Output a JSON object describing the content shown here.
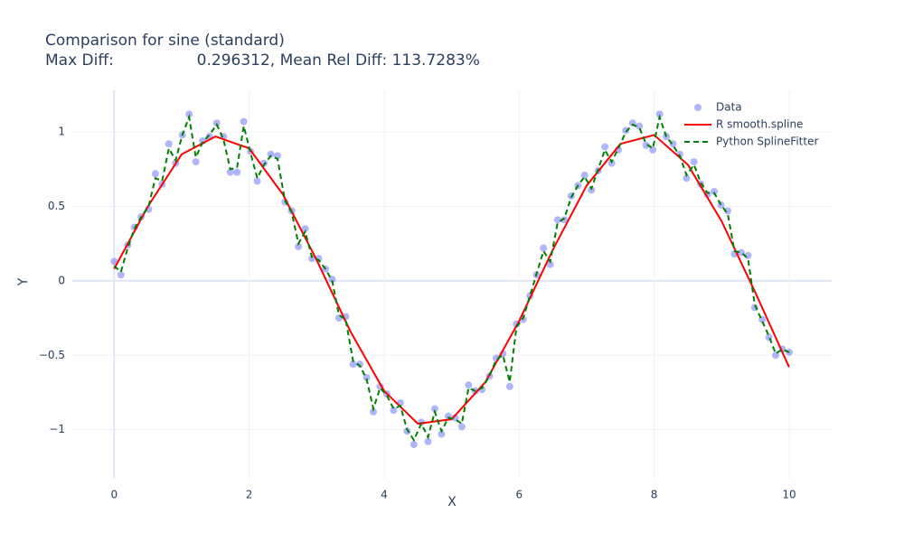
{
  "chart_data": {
    "type": "line",
    "title": "Comparison for sine (standard)",
    "subtitle": "Max Diff:                 0.296312, Mean Rel Diff: 113.7283%",
    "xlabel": "X",
    "ylabel": "Y",
    "xlim": [
      -0.62,
      10.63
    ],
    "ylim": [
      -1.33,
      1.28
    ],
    "xticks": [
      0,
      2,
      4,
      6,
      8,
      10
    ],
    "yticks": [
      {
        "value": -1,
        "label": "−1"
      },
      {
        "value": -0.5,
        "label": "−0.5"
      },
      0,
      0.5,
      1
    ],
    "grid": true,
    "legend": "top-right",
    "series": [
      {
        "name": "Data",
        "mode": "markers",
        "color": "#636efa",
        "x": [
          0,
          0.1,
          0.2,
          0.3,
          0.4,
          0.51,
          0.61,
          0.71,
          0.81,
          0.91,
          1.01,
          1.11,
          1.21,
          1.31,
          1.41,
          1.52,
          1.62,
          1.72,
          1.82,
          1.92,
          2.02,
          2.12,
          2.22,
          2.32,
          2.42,
          2.53,
          2.63,
          2.73,
          2.83,
          2.93,
          3.03,
          3.13,
          3.23,
          3.33,
          3.43,
          3.54,
          3.64,
          3.74,
          3.84,
          3.94,
          4.04,
          4.14,
          4.24,
          4.34,
          4.44,
          4.55,
          4.65,
          4.75,
          4.85,
          4.95,
          5.05,
          5.15,
          5.25,
          5.35,
          5.45,
          5.56,
          5.66,
          5.76,
          5.86,
          5.96,
          6.06,
          6.16,
          6.26,
          6.36,
          6.46,
          6.57,
          6.67,
          6.77,
          6.87,
          6.97,
          7.07,
          7.17,
          7.27,
          7.37,
          7.47,
          7.58,
          7.68,
          7.78,
          7.88,
          7.98,
          8.08,
          8.18,
          8.28,
          8.38,
          8.48,
          8.59,
          8.69,
          8.79,
          8.89,
          8.99,
          9.09,
          9.19,
          9.29,
          9.39,
          9.49,
          9.6,
          9.7,
          9.8,
          9.9,
          10
        ],
        "values": [
          0.13,
          0.04,
          0.24,
          0.36,
          0.43,
          0.48,
          0.72,
          0.65,
          0.92,
          0.79,
          0.98,
          1.12,
          0.8,
          0.94,
          0.97,
          1.06,
          0.97,
          0.73,
          0.73,
          1.07,
          0.87,
          0.67,
          0.79,
          0.85,
          0.84,
          0.53,
          0.47,
          0.23,
          0.35,
          0.15,
          0.15,
          0.08,
          0.01,
          -0.25,
          -0.24,
          -0.56,
          -0.56,
          -0.65,
          -0.88,
          -0.71,
          -0.76,
          -0.87,
          -0.82,
          -1.01,
          -1.1,
          -0.95,
          -1.08,
          -0.86,
          -1.03,
          -0.91,
          -0.92,
          -0.98,
          -0.7,
          -0.74,
          -0.73,
          -0.64,
          -0.52,
          -0.49,
          -0.71,
          -0.29,
          -0.26,
          -0.1,
          0.04,
          0.22,
          0.11,
          0.41,
          0.41,
          0.57,
          0.64,
          0.71,
          0.61,
          0.74,
          0.9,
          0.79,
          0.88,
          1.01,
          1.06,
          1.04,
          0.91,
          0.88,
          1.12,
          0.97,
          0.92,
          0.85,
          0.69,
          0.8,
          0.65,
          0.58,
          0.6,
          0.51,
          0.47,
          0.18,
          0.19,
          0.17,
          -0.18,
          -0.26,
          -0.38,
          -0.5,
          -0.46,
          -0.48
        ]
      },
      {
        "name": "R smooth.spline",
        "mode": "lines",
        "color": "#ff0000",
        "x": [
          0,
          0.5,
          1,
          1.5,
          2,
          2.5,
          3,
          3.5,
          4,
          4.5,
          5,
          5.5,
          6,
          6.5,
          7,
          7.5,
          8,
          8.5,
          9,
          9.5,
          10
        ],
        "values": [
          0.08,
          0.5,
          0.85,
          0.97,
          0.89,
          0.58,
          0.14,
          -0.34,
          -0.74,
          -0.96,
          -0.93,
          -0.68,
          -0.27,
          0.21,
          0.64,
          0.92,
          0.98,
          0.78,
          0.4,
          -0.08,
          -0.58
        ]
      },
      {
        "name": "Python SplineFitter",
        "mode": "dashed",
        "color": "#008000",
        "x": [
          0,
          0.1,
          0.2,
          0.3,
          0.4,
          0.51,
          0.61,
          0.71,
          0.81,
          0.91,
          1.01,
          1.11,
          1.21,
          1.31,
          1.41,
          1.52,
          1.62,
          1.72,
          1.82,
          1.92,
          2.02,
          2.12,
          2.22,
          2.32,
          2.42,
          2.53,
          2.63,
          2.73,
          2.83,
          2.93,
          3.03,
          3.13,
          3.23,
          3.33,
          3.43,
          3.54,
          3.64,
          3.74,
          3.84,
          3.94,
          4.04,
          4.14,
          4.24,
          4.34,
          4.44,
          4.55,
          4.65,
          4.75,
          4.85,
          4.95,
          5.05,
          5.15,
          5.25,
          5.35,
          5.45,
          5.56,
          5.66,
          5.76,
          5.86,
          5.96,
          6.06,
          6.16,
          6.26,
          6.36,
          6.46,
          6.57,
          6.67,
          6.77,
          6.87,
          6.97,
          7.07,
          7.17,
          7.27,
          7.37,
          7.47,
          7.58,
          7.68,
          7.78,
          7.88,
          7.98,
          8.08,
          8.18,
          8.28,
          8.38,
          8.48,
          8.59,
          8.69,
          8.79,
          8.89,
          8.99,
          9.09,
          9.19,
          9.29,
          9.39,
          9.49,
          9.6,
          9.7,
          9.8,
          9.9,
          10
        ],
        "values": [
          0.1,
          0.06,
          0.22,
          0.35,
          0.43,
          0.5,
          0.69,
          0.67,
          0.89,
          0.81,
          0.98,
          1.1,
          0.83,
          0.93,
          0.98,
          1.05,
          0.95,
          0.75,
          0.76,
          1.04,
          0.86,
          0.69,
          0.78,
          0.84,
          0.82,
          0.54,
          0.46,
          0.25,
          0.33,
          0.16,
          0.14,
          0.08,
          0.0,
          -0.23,
          -0.26,
          -0.54,
          -0.57,
          -0.66,
          -0.86,
          -0.72,
          -0.77,
          -0.86,
          -0.84,
          -1.0,
          -1.07,
          -0.96,
          -1.05,
          -0.88,
          -1.01,
          -0.92,
          -0.93,
          -0.96,
          -0.72,
          -0.74,
          -0.72,
          -0.64,
          -0.53,
          -0.5,
          -0.68,
          -0.31,
          -0.25,
          -0.1,
          0.05,
          0.2,
          0.13,
          0.39,
          0.42,
          0.56,
          0.64,
          0.7,
          0.62,
          0.75,
          0.88,
          0.8,
          0.89,
          1.0,
          1.05,
          1.03,
          0.92,
          0.89,
          1.1,
          0.97,
          0.91,
          0.84,
          0.71,
          0.78,
          0.66,
          0.59,
          0.59,
          0.51,
          0.45,
          0.2,
          0.19,
          0.15,
          -0.16,
          -0.27,
          -0.37,
          -0.49,
          -0.46,
          -0.48
        ]
      }
    ]
  }
}
